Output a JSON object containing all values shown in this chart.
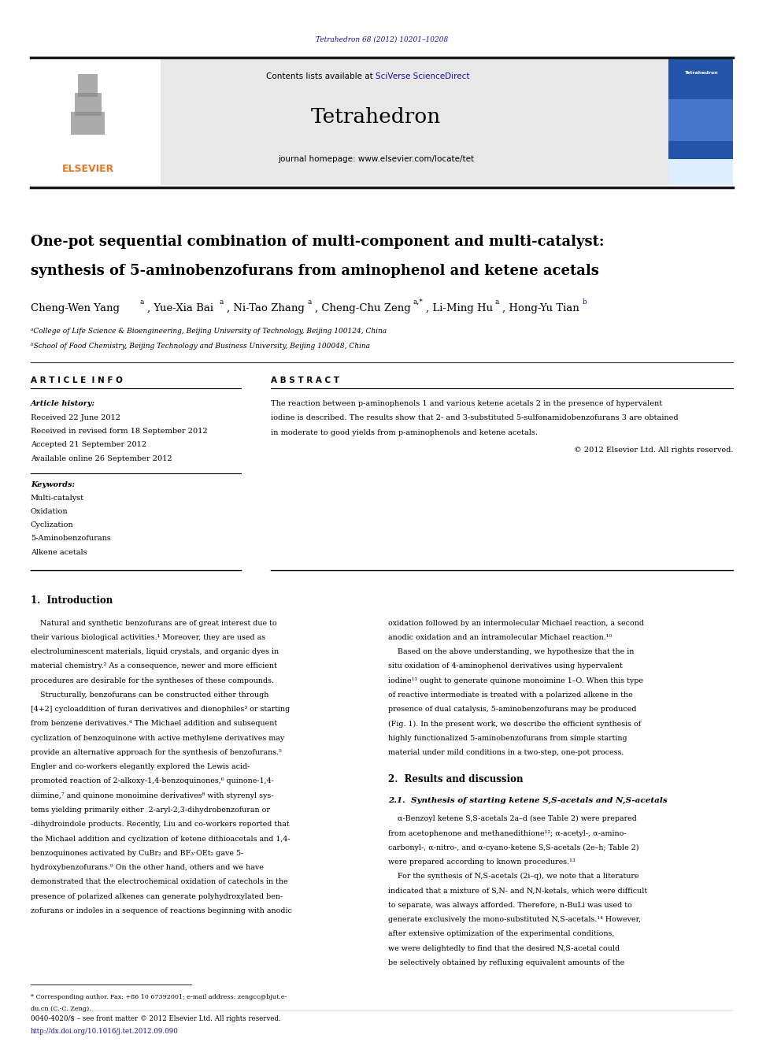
{
  "bg_color": "#ffffff",
  "page_width": 9.92,
  "page_height": 13.23,
  "doi_text": "Tetrahedron 68 (2012) 10201–10208",
  "doi_color": "#1a0dab",
  "journal_name": "Tetrahedron",
  "contents_text": "Contents lists available at ",
  "sciverse_text": "SciVerse ScienceDirect",
  "homepage_text": "journal homepage: www.elsevier.com/locate/tet",
  "header_bg": "#e8e8e8",
  "title_line1": "One-pot sequential combination of multi-component and multi-catalyst:",
  "title_line2": "synthesis of 5-aminobenzofurans from aminophenol and ketene acetals",
  "article_info_title": "A R T I C L E  I N F O",
  "abstract_title": "A B S T R A C T",
  "article_history_label": "Article history:",
  "received": "Received 22 June 2012",
  "received_revised": "Received in revised form 18 September 2012",
  "accepted": "Accepted 21 September 2012",
  "available": "Available online 26 September 2012",
  "keywords_label": "Keywords:",
  "keywords": [
    "Multi-catalyst",
    "Oxidation",
    "Cyclization",
    "5-Aminobenzofurans",
    "Alkene acetals"
  ],
  "abstract_text": "The reaction between p-aminophenols 1 and various ketene acetals 2 in the presence of hypervalent iodine is described. The results show that 2- and 3-substituted 5-sulfonamidobenzofurans 3 are obtained in moderate to good yields from p-aminophenols and ketene acetals.",
  "copyright_text": "© 2012 Elsevier Ltd. All rights reserved.",
  "section1_title": "1.  Introduction",
  "section2_title": "2.  Results and discussion",
  "section21_title": "2.1.  Synthesis of starting ketene S,S-acetals and N,S-acetals",
  "footer_text1": "0040-4020/$ – see front matter © 2012 Elsevier Ltd. All rights reserved.",
  "footer_text2": "http://dx.doi.org/10.1016/j.tet.2012.09.090",
  "footer_color": "#1a0dab",
  "elsevier_color": "#e87722",
  "sciverse_color": "#1a0dab",
  "thick_line_color": "#1a1a1a",
  "thin_line_color": "#333333",
  "affil_a": "ᵃCollege of Life Science & Bioengineering, Beijing University of Technology, Beijing 100124, China",
  "affil_b": "ᵇSchool of Food Chemistry, Beijing Technology and Business University, Beijing 100048, China",
  "footnote": "* Corresponding author. Fax: +86 10 67392001; e-mail address: zengcc@bjut.e-du.cn (C.-C. Zeng)."
}
